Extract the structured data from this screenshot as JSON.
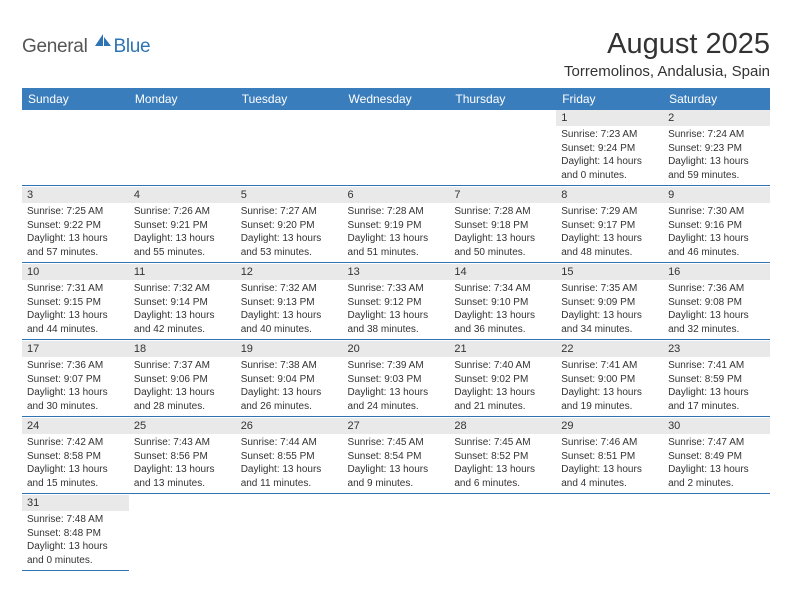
{
  "logo": {
    "general": "General",
    "blue": "Blue"
  },
  "title": "August 2025",
  "location": "Torremolinos, Andalusia, Spain",
  "colors": {
    "header_bg": "#3a7dbc",
    "header_text": "#ffffff",
    "daynum_bg": "#e9e9e9",
    "divider": "#2e74b5",
    "logo_blue": "#2e74b5",
    "body_text": "#333333"
  },
  "weekdays": [
    "Sunday",
    "Monday",
    "Tuesday",
    "Wednesday",
    "Thursday",
    "Friday",
    "Saturday"
  ],
  "weeks": [
    [
      {
        "n": "",
        "sr": "",
        "ss": "",
        "dl1": "",
        "dl2": ""
      },
      {
        "n": "",
        "sr": "",
        "ss": "",
        "dl1": "",
        "dl2": ""
      },
      {
        "n": "",
        "sr": "",
        "ss": "",
        "dl1": "",
        "dl2": ""
      },
      {
        "n": "",
        "sr": "",
        "ss": "",
        "dl1": "",
        "dl2": ""
      },
      {
        "n": "",
        "sr": "",
        "ss": "",
        "dl1": "",
        "dl2": ""
      },
      {
        "n": "1",
        "sr": "Sunrise: 7:23 AM",
        "ss": "Sunset: 9:24 PM",
        "dl1": "Daylight: 14 hours",
        "dl2": "and 0 minutes."
      },
      {
        "n": "2",
        "sr": "Sunrise: 7:24 AM",
        "ss": "Sunset: 9:23 PM",
        "dl1": "Daylight: 13 hours",
        "dl2": "and 59 minutes."
      }
    ],
    [
      {
        "n": "3",
        "sr": "Sunrise: 7:25 AM",
        "ss": "Sunset: 9:22 PM",
        "dl1": "Daylight: 13 hours",
        "dl2": "and 57 minutes."
      },
      {
        "n": "4",
        "sr": "Sunrise: 7:26 AM",
        "ss": "Sunset: 9:21 PM",
        "dl1": "Daylight: 13 hours",
        "dl2": "and 55 minutes."
      },
      {
        "n": "5",
        "sr": "Sunrise: 7:27 AM",
        "ss": "Sunset: 9:20 PM",
        "dl1": "Daylight: 13 hours",
        "dl2": "and 53 minutes."
      },
      {
        "n": "6",
        "sr": "Sunrise: 7:28 AM",
        "ss": "Sunset: 9:19 PM",
        "dl1": "Daylight: 13 hours",
        "dl2": "and 51 minutes."
      },
      {
        "n": "7",
        "sr": "Sunrise: 7:28 AM",
        "ss": "Sunset: 9:18 PM",
        "dl1": "Daylight: 13 hours",
        "dl2": "and 50 minutes."
      },
      {
        "n": "8",
        "sr": "Sunrise: 7:29 AM",
        "ss": "Sunset: 9:17 PM",
        "dl1": "Daylight: 13 hours",
        "dl2": "and 48 minutes."
      },
      {
        "n": "9",
        "sr": "Sunrise: 7:30 AM",
        "ss": "Sunset: 9:16 PM",
        "dl1": "Daylight: 13 hours",
        "dl2": "and 46 minutes."
      }
    ],
    [
      {
        "n": "10",
        "sr": "Sunrise: 7:31 AM",
        "ss": "Sunset: 9:15 PM",
        "dl1": "Daylight: 13 hours",
        "dl2": "and 44 minutes."
      },
      {
        "n": "11",
        "sr": "Sunrise: 7:32 AM",
        "ss": "Sunset: 9:14 PM",
        "dl1": "Daylight: 13 hours",
        "dl2": "and 42 minutes."
      },
      {
        "n": "12",
        "sr": "Sunrise: 7:32 AM",
        "ss": "Sunset: 9:13 PM",
        "dl1": "Daylight: 13 hours",
        "dl2": "and 40 minutes."
      },
      {
        "n": "13",
        "sr": "Sunrise: 7:33 AM",
        "ss": "Sunset: 9:12 PM",
        "dl1": "Daylight: 13 hours",
        "dl2": "and 38 minutes."
      },
      {
        "n": "14",
        "sr": "Sunrise: 7:34 AM",
        "ss": "Sunset: 9:10 PM",
        "dl1": "Daylight: 13 hours",
        "dl2": "and 36 minutes."
      },
      {
        "n": "15",
        "sr": "Sunrise: 7:35 AM",
        "ss": "Sunset: 9:09 PM",
        "dl1": "Daylight: 13 hours",
        "dl2": "and 34 minutes."
      },
      {
        "n": "16",
        "sr": "Sunrise: 7:36 AM",
        "ss": "Sunset: 9:08 PM",
        "dl1": "Daylight: 13 hours",
        "dl2": "and 32 minutes."
      }
    ],
    [
      {
        "n": "17",
        "sr": "Sunrise: 7:36 AM",
        "ss": "Sunset: 9:07 PM",
        "dl1": "Daylight: 13 hours",
        "dl2": "and 30 minutes."
      },
      {
        "n": "18",
        "sr": "Sunrise: 7:37 AM",
        "ss": "Sunset: 9:06 PM",
        "dl1": "Daylight: 13 hours",
        "dl2": "and 28 minutes."
      },
      {
        "n": "19",
        "sr": "Sunrise: 7:38 AM",
        "ss": "Sunset: 9:04 PM",
        "dl1": "Daylight: 13 hours",
        "dl2": "and 26 minutes."
      },
      {
        "n": "20",
        "sr": "Sunrise: 7:39 AM",
        "ss": "Sunset: 9:03 PM",
        "dl1": "Daylight: 13 hours",
        "dl2": "and 24 minutes."
      },
      {
        "n": "21",
        "sr": "Sunrise: 7:40 AM",
        "ss": "Sunset: 9:02 PM",
        "dl1": "Daylight: 13 hours",
        "dl2": "and 21 minutes."
      },
      {
        "n": "22",
        "sr": "Sunrise: 7:41 AM",
        "ss": "Sunset: 9:00 PM",
        "dl1": "Daylight: 13 hours",
        "dl2": "and 19 minutes."
      },
      {
        "n": "23",
        "sr": "Sunrise: 7:41 AM",
        "ss": "Sunset: 8:59 PM",
        "dl1": "Daylight: 13 hours",
        "dl2": "and 17 minutes."
      }
    ],
    [
      {
        "n": "24",
        "sr": "Sunrise: 7:42 AM",
        "ss": "Sunset: 8:58 PM",
        "dl1": "Daylight: 13 hours",
        "dl2": "and 15 minutes."
      },
      {
        "n": "25",
        "sr": "Sunrise: 7:43 AM",
        "ss": "Sunset: 8:56 PM",
        "dl1": "Daylight: 13 hours",
        "dl2": "and 13 minutes."
      },
      {
        "n": "26",
        "sr": "Sunrise: 7:44 AM",
        "ss": "Sunset: 8:55 PM",
        "dl1": "Daylight: 13 hours",
        "dl2": "and 11 minutes."
      },
      {
        "n": "27",
        "sr": "Sunrise: 7:45 AM",
        "ss": "Sunset: 8:54 PM",
        "dl1": "Daylight: 13 hours",
        "dl2": "and 9 minutes."
      },
      {
        "n": "28",
        "sr": "Sunrise: 7:45 AM",
        "ss": "Sunset: 8:52 PM",
        "dl1": "Daylight: 13 hours",
        "dl2": "and 6 minutes."
      },
      {
        "n": "29",
        "sr": "Sunrise: 7:46 AM",
        "ss": "Sunset: 8:51 PM",
        "dl1": "Daylight: 13 hours",
        "dl2": "and 4 minutes."
      },
      {
        "n": "30",
        "sr": "Sunrise: 7:47 AM",
        "ss": "Sunset: 8:49 PM",
        "dl1": "Daylight: 13 hours",
        "dl2": "and 2 minutes."
      }
    ],
    [
      {
        "n": "31",
        "sr": "Sunrise: 7:48 AM",
        "ss": "Sunset: 8:48 PM",
        "dl1": "Daylight: 13 hours",
        "dl2": "and 0 minutes."
      },
      {
        "n": "",
        "sr": "",
        "ss": "",
        "dl1": "",
        "dl2": ""
      },
      {
        "n": "",
        "sr": "",
        "ss": "",
        "dl1": "",
        "dl2": ""
      },
      {
        "n": "",
        "sr": "",
        "ss": "",
        "dl1": "",
        "dl2": ""
      },
      {
        "n": "",
        "sr": "",
        "ss": "",
        "dl1": "",
        "dl2": ""
      },
      {
        "n": "",
        "sr": "",
        "ss": "",
        "dl1": "",
        "dl2": ""
      },
      {
        "n": "",
        "sr": "",
        "ss": "",
        "dl1": "",
        "dl2": ""
      }
    ]
  ]
}
